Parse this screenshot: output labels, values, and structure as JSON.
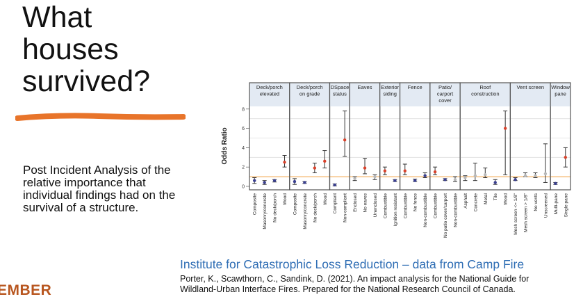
{
  "slide": {
    "title_lines": [
      "What",
      "houses",
      "survived?"
    ],
    "body": "Post Incident Analysis of the relative importance that individual findings had on the survival of a structure.",
    "source_title": "Institute for Catastrophic Loss Reduction – data from Camp Fire",
    "citation_lines": [
      "Porter, K., Scawthorn, C., Sandink, D. (2021). An impact analysis for the National Guide for",
      "Wildland-Urban Interface Fires. Prepared for the National Research Council of Canada."
    ],
    "logo": "EMBER",
    "accent_color": "#e8742a"
  },
  "chart_data": {
    "type": "scatter",
    "subtype": "error-bar-faceted",
    "ylabel": "Odds Ratio",
    "ylim": [
      -0.5,
      9.5
    ],
    "yticks": [
      0,
      2,
      4,
      6,
      8
    ],
    "reference_line": 1,
    "reference_color": "#f0a040",
    "colors": {
      "red": "#d9412b",
      "blue": "#3a3f8f",
      "gray": "#b8b8b8"
    },
    "panels": [
      {
        "title": [
          "Deck/porch",
          "elevated"
        ],
        "items": [
          {
            "label": "Composite",
            "value": 0.6,
            "low": 0.3,
            "high": 0.9,
            "color": "blue"
          },
          {
            "label": "Masonry/concrete",
            "value": 0.4,
            "low": 0.2,
            "high": 0.6,
            "color": "blue"
          },
          {
            "label": "No deck/porch",
            "value": 0.6,
            "low": 0.45,
            "high": 0.7,
            "color": "blue"
          },
          {
            "label": "Wood",
            "value": 2.5,
            "low": 2.0,
            "high": 3.2,
            "color": "red"
          }
        ]
      },
      {
        "title": [
          "Deck/porch",
          "on grade"
        ],
        "items": [
          {
            "label": "Composite",
            "value": 0.5,
            "low": 0.2,
            "high": 0.8,
            "color": "blue"
          },
          {
            "label": "Masonry/concrete",
            "value": 0.4,
            "low": 0.3,
            "high": 0.5,
            "color": "blue"
          },
          {
            "label": "No deck/porch",
            "value": 1.9,
            "low": 1.4,
            "high": 2.4,
            "color": "red"
          },
          {
            "label": "Wood",
            "value": 2.6,
            "low": 1.9,
            "high": 3.7,
            "color": "red"
          }
        ]
      },
      {
        "title": [
          "DSpace",
          "status"
        ],
        "items": [
          {
            "label": "Compliant",
            "value": 0.15,
            "low": 0.05,
            "high": 0.25,
            "color": "blue"
          },
          {
            "label": "Non-compliant",
            "value": 4.8,
            "low": 3.1,
            "high": 7.8,
            "color": "red"
          }
        ]
      },
      {
        "title": [
          "Eaves"
        ],
        "items": [
          {
            "label": "Enclosed",
            "value": 0.8,
            "low": 0.6,
            "high": 1.0,
            "color": "gray"
          },
          {
            "label": "No eaves",
            "value": 1.9,
            "low": 1.3,
            "high": 2.9,
            "color": "red"
          },
          {
            "label": "Unenclosed",
            "value": 1.0,
            "low": 0.7,
            "high": 1.2,
            "color": "gray"
          }
        ]
      },
      {
        "title": [
          "Exterior",
          "siding"
        ],
        "items": [
          {
            "label": "Combustible",
            "value": 1.6,
            "low": 1.2,
            "high": 2.0,
            "color": "red"
          },
          {
            "label": "Ignition resistant",
            "value": 0.6,
            "low": 0.5,
            "high": 0.7,
            "color": "blue"
          }
        ]
      },
      {
        "title": [
          "Fence"
        ],
        "items": [
          {
            "label": "Combustible",
            "value": 1.6,
            "low": 1.2,
            "high": 2.3,
            "color": "red"
          },
          {
            "label": "No fence",
            "value": 0.6,
            "low": 0.5,
            "high": 0.75,
            "color": "blue"
          },
          {
            "label": "Non-combustible",
            "value": 1.1,
            "low": 0.9,
            "high": 1.4,
            "color": "blue"
          }
        ]
      },
      {
        "title": [
          "Patio/",
          "carport",
          "cover"
        ],
        "items": [
          {
            "label": "Combustible",
            "value": 1.5,
            "low": 1.2,
            "high": 2.0,
            "color": "red"
          },
          {
            "label": "No patio cover/carport",
            "value": 0.7,
            "low": 0.6,
            "high": 0.8,
            "color": "blue"
          },
          {
            "label": "Non-combustible",
            "value": 0.7,
            "low": 0.5,
            "high": 1.0,
            "color": "gray"
          }
        ]
      },
      {
        "title": [
          "Roof",
          "construction"
        ],
        "items": [
          {
            "label": "Asphalt",
            "value": 0.9,
            "low": 0.6,
            "high": 1.1,
            "color": "gray"
          },
          {
            "label": "Concrete",
            "value": 1.1,
            "low": 0.6,
            "high": 2.4,
            "color": "gray"
          },
          {
            "label": "Metal",
            "value": 1.2,
            "low": 0.9,
            "high": 1.9,
            "color": "gray"
          },
          {
            "label": "Tile",
            "value": 0.4,
            "low": 0.2,
            "high": 0.7,
            "color": "blue"
          },
          {
            "label": "Wood",
            "value": 6.0,
            "low": 1.2,
            "high": 7.8,
            "color": "red"
          }
        ]
      },
      {
        "title": [
          "Vent screen"
        ],
        "items": [
          {
            "label": "Mesh screen <= 1/8\"",
            "value": 0.7,
            "low": 0.6,
            "high": 0.9,
            "color": "blue"
          },
          {
            "label": "Mesh screen > 1/8\"",
            "value": 1.1,
            "low": 1.0,
            "high": 1.4,
            "color": "gray"
          },
          {
            "label": "No vents",
            "value": 1.1,
            "low": 0.9,
            "high": 1.4,
            "color": "gray"
          },
          {
            "label": "Unscreened",
            "value": 1.3,
            "low": 0.4,
            "high": 4.4,
            "color": "gray"
          }
        ]
      },
      {
        "title": [
          "Window",
          "pane"
        ],
        "items": [
          {
            "label": "Multi-pane",
            "value": 0.3,
            "low": 0.2,
            "high": 0.4,
            "color": "blue"
          },
          {
            "label": "Single pane",
            "value": 3.0,
            "low": 2.0,
            "high": 4.0,
            "color": "red"
          }
        ]
      }
    ]
  }
}
